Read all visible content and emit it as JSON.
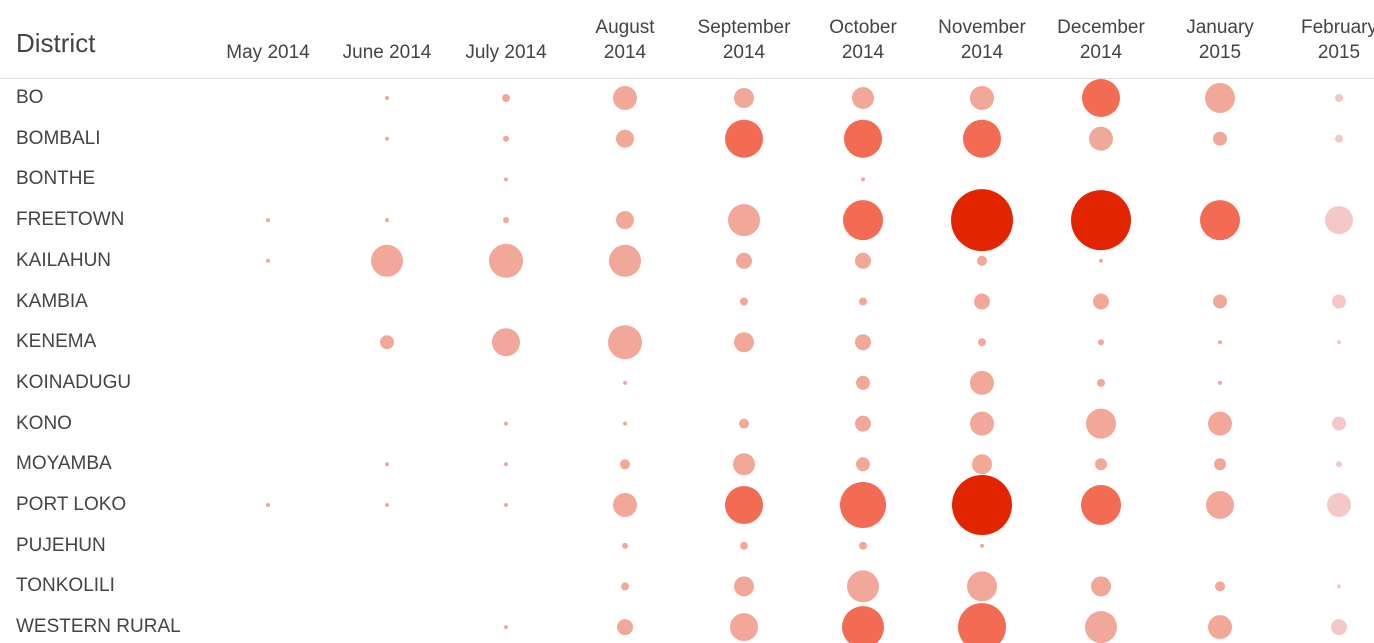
{
  "chart_data": {
    "type": "bubble-matrix",
    "header": "District",
    "columns": [
      "May 2014",
      "June 2014",
      "July 2014",
      "August 2014",
      "September 2014",
      "October 2014",
      "November 2014",
      "December 2014",
      "January 2015",
      "February 2015"
    ],
    "rows": [
      {
        "district": "BO",
        "values": [
          null,
          4,
          16,
          144,
          100,
          121,
          144,
          361,
          225,
          16
        ],
        "colors": [
          null,
          "#f2a898",
          "#f2a898",
          "#f2a898",
          "#f2a898",
          "#f2a898",
          "#f2a898",
          "#f26b52",
          "#f2a898",
          "#f5c8c8"
        ]
      },
      {
        "district": "BOMBALI",
        "values": [
          null,
          4,
          9,
          81,
          361,
          361,
          361,
          144,
          49,
          16
        ],
        "colors": [
          null,
          "#f2a898",
          "#f2a898",
          "#f2a898",
          "#f26b52",
          "#f26b52",
          "#f26b52",
          "#f2a898",
          "#f2a898",
          "#f5c8c8"
        ]
      },
      {
        "district": "BONTHE",
        "values": [
          null,
          null,
          4,
          null,
          null,
          4,
          null,
          null,
          null,
          null
        ],
        "colors": [
          null,
          null,
          "#f2a898",
          null,
          null,
          "#f2a898",
          null,
          null,
          null,
          null
        ]
      },
      {
        "district": "FREETOWN",
        "values": [
          4,
          4,
          9,
          81,
          256,
          400,
          961,
          900,
          400,
          196
        ],
        "colors": [
          "#f2a898",
          "#f2a898",
          "#f2a898",
          "#f2a898",
          "#f2a898",
          "#f26b52",
          "#e32400",
          "#e32400",
          "#f26b52",
          "#f5c8c8"
        ]
      },
      {
        "district": "KAILAHUN",
        "values": [
          4,
          256,
          289,
          256,
          64,
          64,
          25,
          4,
          null,
          null
        ],
        "colors": [
          "#f2a898",
          "#f2a898",
          "#f2a898",
          "#f2a898",
          "#f2a898",
          "#f2a898",
          "#f2a898",
          "#f2a898",
          null,
          null
        ]
      },
      {
        "district": "KAMBIA",
        "values": [
          null,
          null,
          null,
          null,
          16,
          16,
          64,
          64,
          49,
          49
        ],
        "colors": [
          null,
          null,
          null,
          null,
          "#f2a898",
          "#f2a898",
          "#f2a898",
          "#f2a898",
          "#f2a898",
          "#f5c8c8"
        ]
      },
      {
        "district": "KENEMA",
        "values": [
          null,
          49,
          196,
          289,
          100,
          64,
          16,
          9,
          4,
          4
        ],
        "colors": [
          null,
          "#f2a898",
          "#f2a898",
          "#f2a898",
          "#f2a898",
          "#f2a898",
          "#f2a898",
          "#f2a898",
          "#f2a898",
          "#f5c8c8"
        ]
      },
      {
        "district": "KOINADUGU",
        "values": [
          null,
          null,
          null,
          4,
          null,
          49,
          144,
          16,
          4,
          null
        ],
        "colors": [
          null,
          null,
          null,
          "#f2a898",
          null,
          "#f2a898",
          "#f2a898",
          "#f2a898",
          "#f2a898",
          null
        ]
      },
      {
        "district": "KONO",
        "values": [
          null,
          null,
          4,
          4,
          25,
          64,
          144,
          225,
          144,
          49
        ],
        "colors": [
          null,
          null,
          "#f2a898",
          "#f2a898",
          "#f2a898",
          "#f2a898",
          "#f2a898",
          "#f2a898",
          "#f2a898",
          "#f5c8c8"
        ]
      },
      {
        "district": "MOYAMBA",
        "values": [
          null,
          4,
          4,
          25,
          121,
          49,
          100,
          36,
          36,
          9
        ],
        "colors": [
          null,
          "#f2a898",
          "#f2a898",
          "#f2a898",
          "#f2a898",
          "#f2a898",
          "#f2a898",
          "#f2a898",
          "#f2a898",
          "#f5c8c8"
        ]
      },
      {
        "district": "PORT LOKO",
        "values": [
          4,
          4,
          4,
          144,
          361,
          529,
          900,
          400,
          196,
          144
        ],
        "colors": [
          "#f2a898",
          "#f2a898",
          "#f2a898",
          "#f2a898",
          "#f26b52",
          "#f26b52",
          "#e32400",
          "#f26b52",
          "#f2a898",
          "#f5c8c8"
        ]
      },
      {
        "district": "PUJEHUN",
        "values": [
          null,
          null,
          null,
          9,
          16,
          16,
          4,
          null,
          null,
          null
        ],
        "colors": [
          null,
          null,
          null,
          "#f2a898",
          "#f2a898",
          "#f2a898",
          "#f2a898",
          null,
          null,
          null
        ]
      },
      {
        "district": "TONKOLILI",
        "values": [
          null,
          null,
          null,
          16,
          100,
          256,
          225,
          100,
          25,
          4
        ],
        "colors": [
          null,
          null,
          null,
          "#f2a898",
          "#f2a898",
          "#f2a898",
          "#f2a898",
          "#f2a898",
          "#f2a898",
          "#f5c8c8"
        ]
      },
      {
        "district": "WESTERN RURAL",
        "values": [
          null,
          null,
          4,
          64,
          196,
          441,
          576,
          256,
          144,
          64
        ],
        "colors": [
          null,
          null,
          "#f2a898",
          "#f2a898",
          "#f2a898",
          "#f26b52",
          "#f26b52",
          "#f2a898",
          "#f2a898",
          "#f5c8c8"
        ]
      }
    ]
  }
}
